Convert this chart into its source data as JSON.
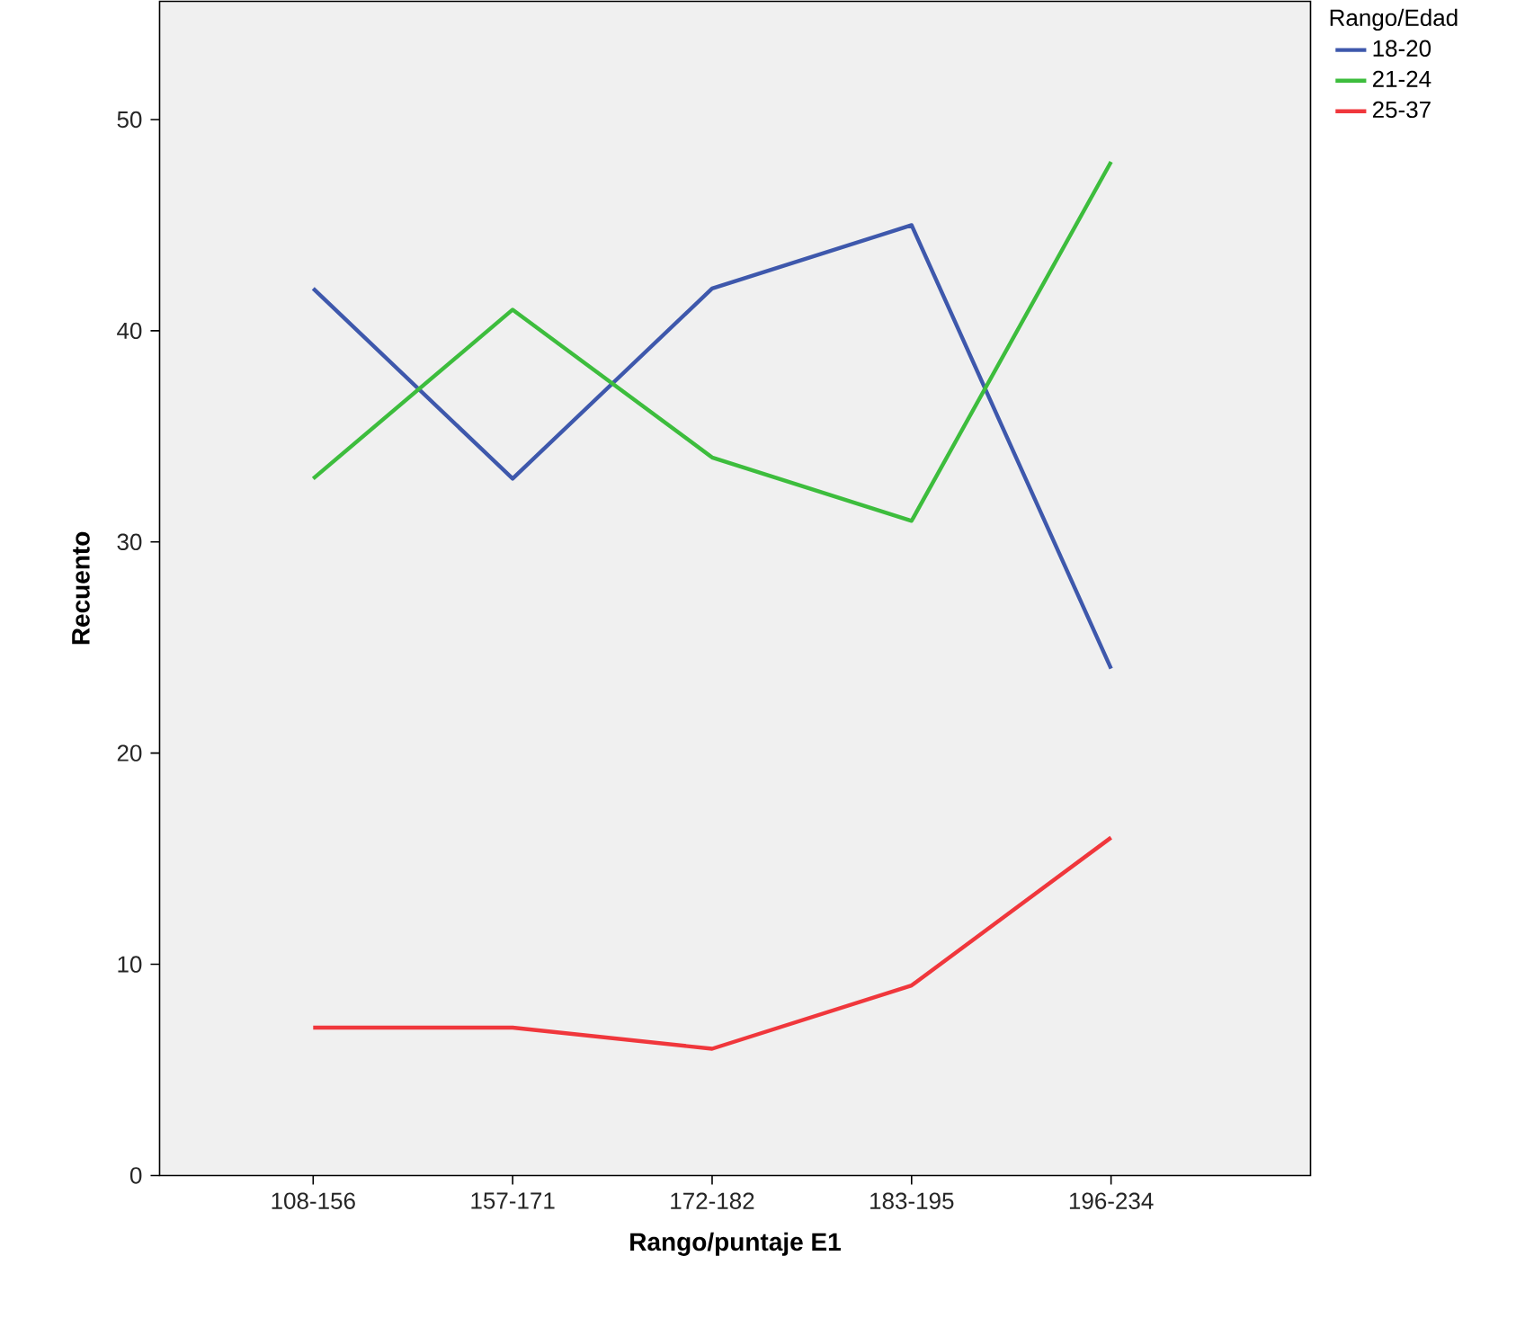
{
  "chart_data": {
    "type": "line",
    "xlabel": "Rango/puntaje E1",
    "ylabel": "Recuento",
    "legend_title": "Rango/Edad",
    "legend": "top right",
    "categories": [
      "108-156",
      "157-171",
      "172-182",
      "183-195",
      "196-234"
    ],
    "ylim": [
      0,
      55.6
    ],
    "yticks": [
      0,
      10,
      20,
      30,
      40,
      50
    ],
    "series": [
      {
        "name": "18-20",
        "color": "#3e58ac",
        "values": [
          42,
          33,
          42,
          45,
          24
        ]
      },
      {
        "name": "21-24",
        "color": "#3dbd3d",
        "values": [
          33,
          41,
          34,
          31,
          48
        ]
      },
      {
        "name": "25-37",
        "color": "#f0373c",
        "values": [
          7,
          7,
          6,
          9,
          16
        ]
      }
    ]
  }
}
